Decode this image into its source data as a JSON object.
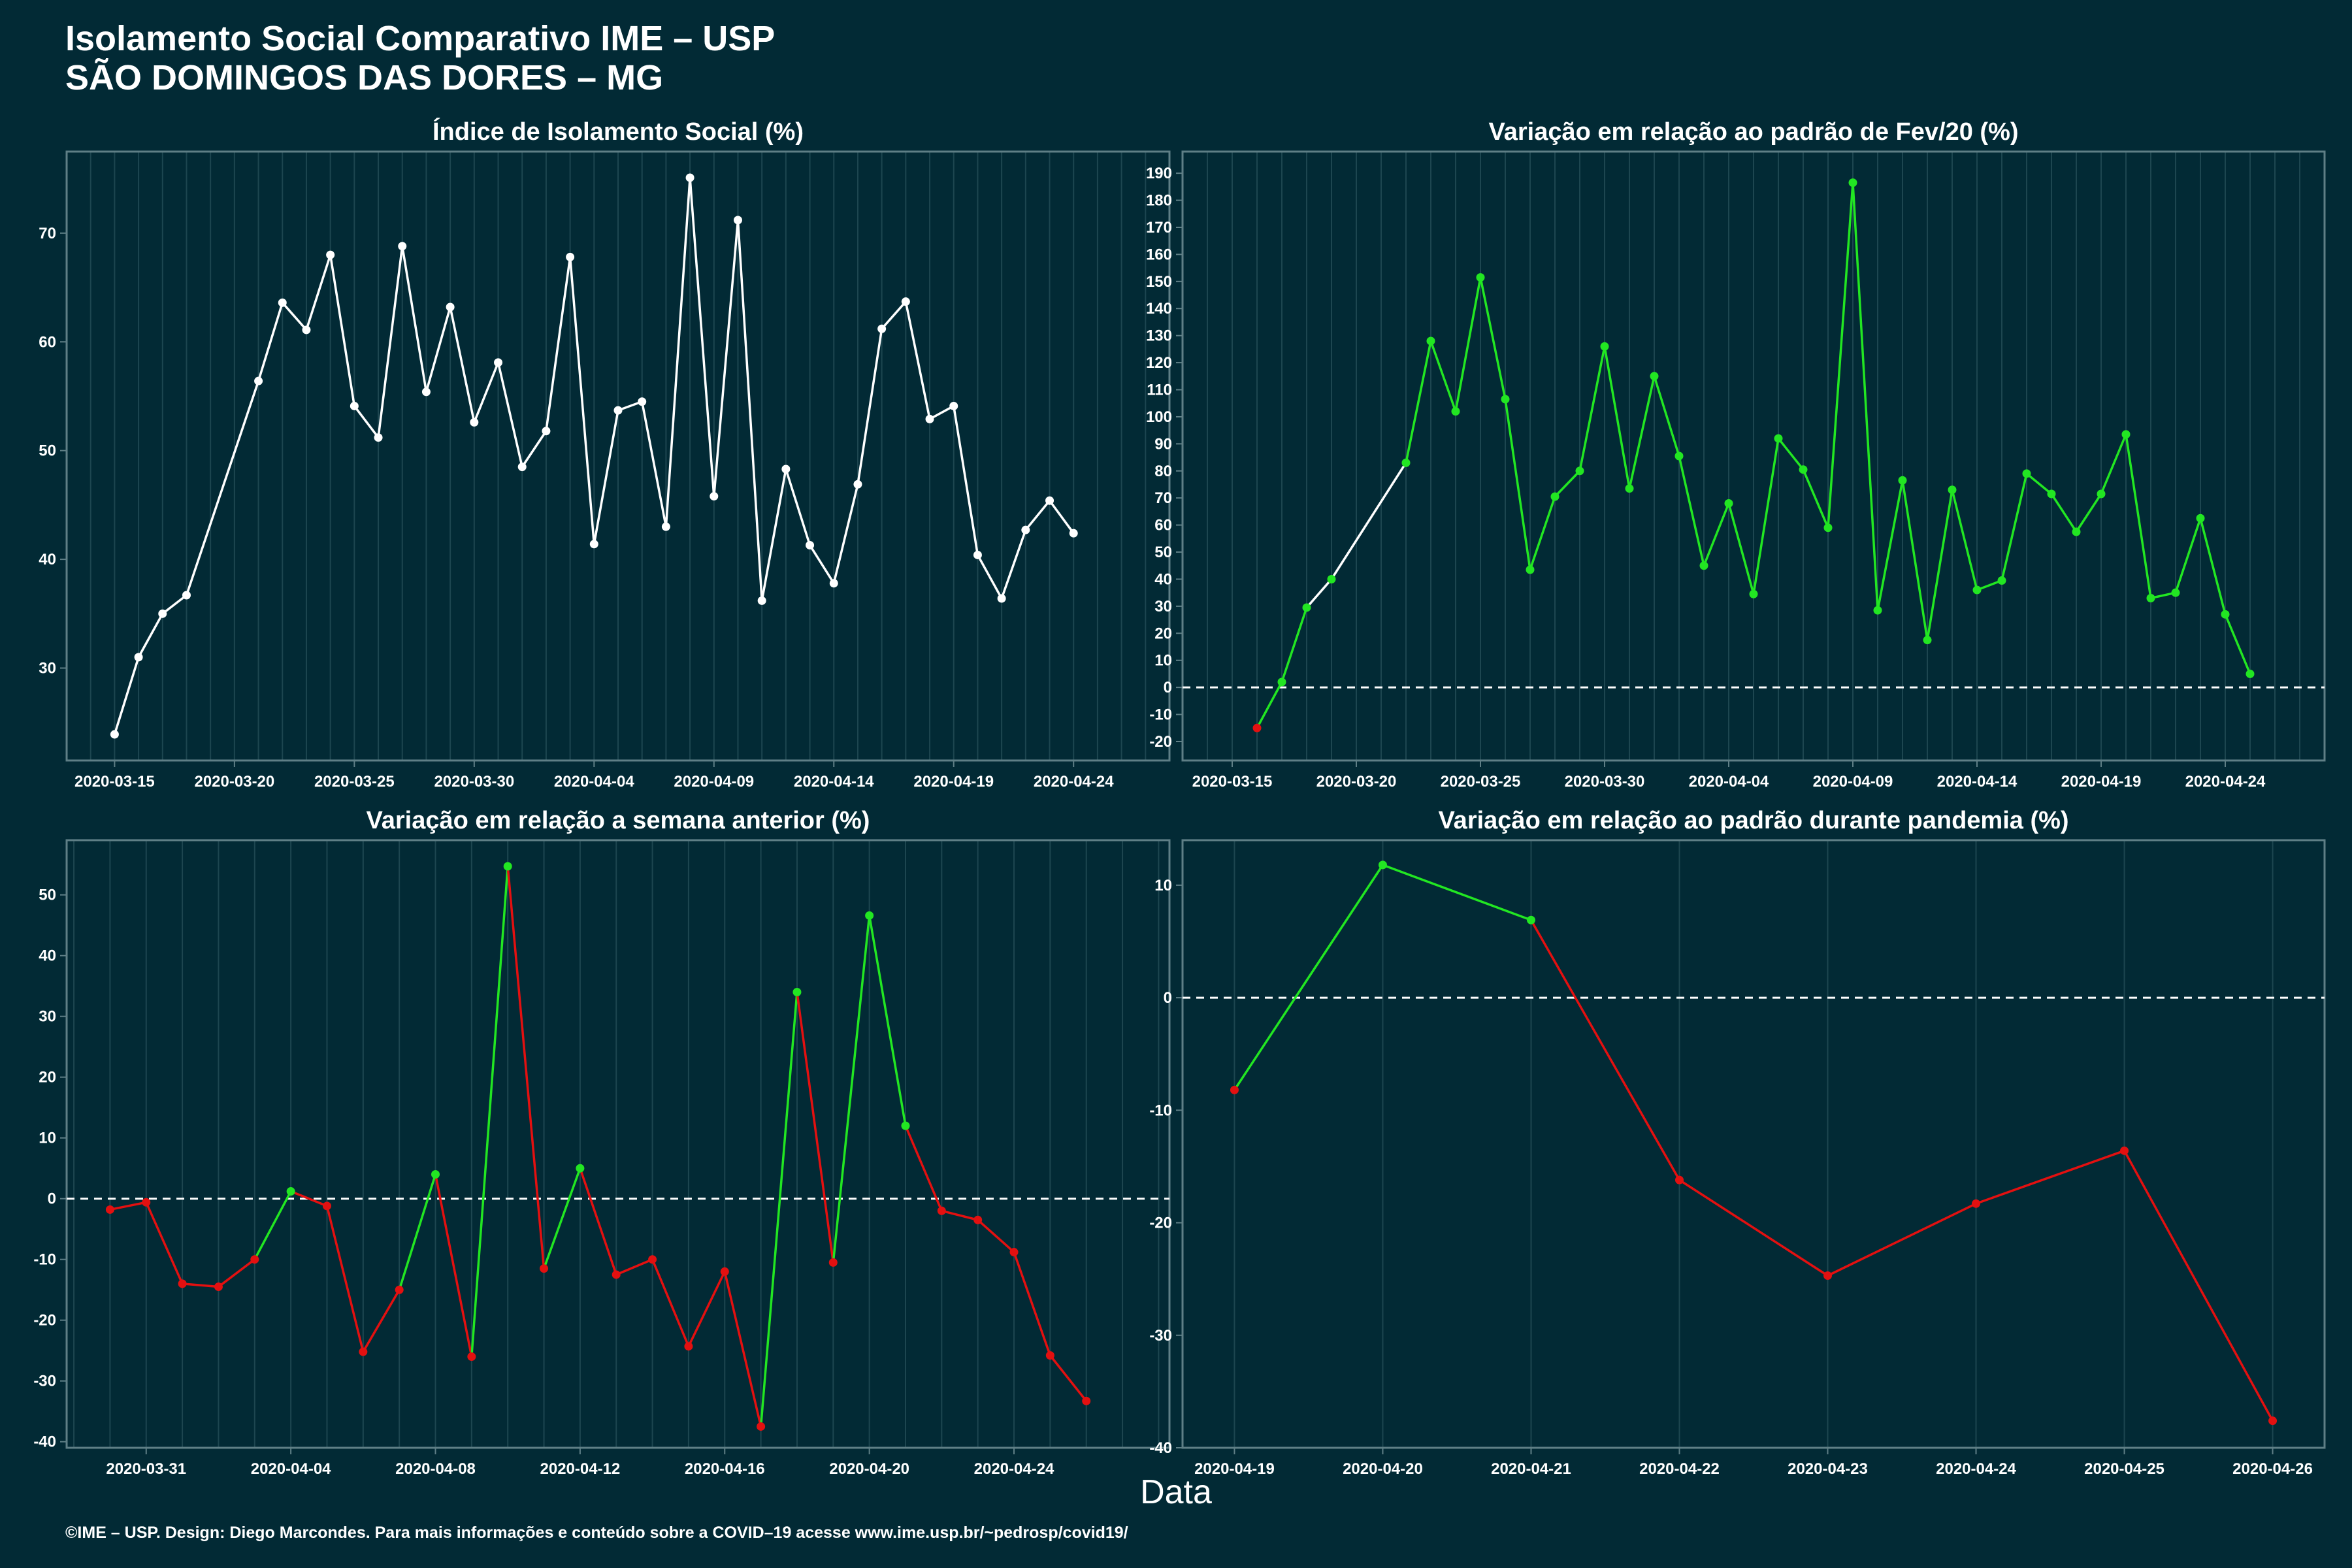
{
  "header": {
    "title_line1": "Isolamento Social Comparativo IME – USP",
    "title_line2": "SÃO DOMINGOS DAS DORES – MG"
  },
  "x_axis_caption": "Data",
  "footer": "©IME – USP. Design: Diego Marcondes. Para mais informações e conteúdo sobre a COVID–19 acesse www.ime.usp.br/~pedrosp/covid19/",
  "colors": {
    "background": "#022a35",
    "panel_border": "#5f7f86",
    "grid": "#1d4650",
    "neutral_line": "#ffffff",
    "positive": "#22e622",
    "negative": "#e31010"
  },
  "chart_data": [
    {
      "id": "p1",
      "type": "line",
      "title": "Índice de Isolamento Social (%)",
      "color_mode": "neutral",
      "reference_line": null,
      "date_start": "2020-03-13",
      "date_end": "2020-04-28",
      "ylim": [
        21.5,
        77.5
      ],
      "yticks": [
        30,
        40,
        50,
        60,
        70
      ],
      "xticks": [
        "2020-03-15",
        "2020-03-20",
        "2020-03-25",
        "2020-03-30",
        "2020-04-04",
        "2020-04-09",
        "2020-04-14",
        "2020-04-19",
        "2020-04-24"
      ],
      "points": [
        {
          "date": "2020-03-15",
          "value": 23.9
        },
        {
          "date": "2020-03-16",
          "value": 31.0
        },
        {
          "date": "2020-03-17",
          "value": 35.0
        },
        {
          "date": "2020-03-18",
          "value": 36.7
        },
        {
          "date": "2020-03-21",
          "value": 56.4
        },
        {
          "date": "2020-03-22",
          "value": 63.6
        },
        {
          "date": "2020-03-23",
          "value": 61.1
        },
        {
          "date": "2020-03-24",
          "value": 68.0
        },
        {
          "date": "2020-03-25",
          "value": 54.1
        },
        {
          "date": "2020-03-26",
          "value": 51.2
        },
        {
          "date": "2020-03-27",
          "value": 68.8
        },
        {
          "date": "2020-03-28",
          "value": 55.4
        },
        {
          "date": "2020-03-29",
          "value": 63.2
        },
        {
          "date": "2020-03-30",
          "value": 52.6
        },
        {
          "date": "2020-03-31",
          "value": 58.1
        },
        {
          "date": "2020-04-01",
          "value": 48.5
        },
        {
          "date": "2020-04-02",
          "value": 51.8
        },
        {
          "date": "2020-04-03",
          "value": 67.8
        },
        {
          "date": "2020-04-04",
          "value": 41.4
        },
        {
          "date": "2020-04-05",
          "value": 53.7
        },
        {
          "date": "2020-04-06",
          "value": 54.5
        },
        {
          "date": "2020-04-07",
          "value": 43.0
        },
        {
          "date": "2020-04-08",
          "value": 75.1
        },
        {
          "date": "2020-04-09",
          "value": 45.8
        },
        {
          "date": "2020-04-10",
          "value": 71.2
        },
        {
          "date": "2020-04-11",
          "value": 36.2
        },
        {
          "date": "2020-04-12",
          "value": 48.3
        },
        {
          "date": "2020-04-13",
          "value": 41.3
        },
        {
          "date": "2020-04-14",
          "value": 37.8
        },
        {
          "date": "2020-04-15",
          "value": 46.9
        },
        {
          "date": "2020-04-16",
          "value": 61.2
        },
        {
          "date": "2020-04-17",
          "value": 63.7
        },
        {
          "date": "2020-04-18",
          "value": 52.9
        },
        {
          "date": "2020-04-19",
          "value": 54.1
        },
        {
          "date": "2020-04-20",
          "value": 40.4
        },
        {
          "date": "2020-04-21",
          "value": 36.4
        },
        {
          "date": "2020-04-22",
          "value": 42.7
        },
        {
          "date": "2020-04-23",
          "value": 45.4
        },
        {
          "date": "2020-04-24",
          "value": 42.4
        }
      ]
    },
    {
      "id": "p2",
      "type": "line",
      "title": "Variação em relação ao padrão de Fev/20 (%)",
      "color_mode": "sign",
      "reference_line": 0,
      "date_start": "2020-03-13",
      "date_end": "2020-04-28",
      "ylim": [
        -27,
        198
      ],
      "yticks": [
        -20,
        -10,
        0,
        10,
        20,
        30,
        40,
        50,
        60,
        70,
        80,
        90,
        100,
        110,
        120,
        130,
        140,
        150,
        160,
        170,
        180,
        190
      ],
      "xticks": [
        "2020-03-15",
        "2020-03-20",
        "2020-03-25",
        "2020-03-30",
        "2020-04-04",
        "2020-04-09",
        "2020-04-14",
        "2020-04-19",
        "2020-04-24"
      ],
      "white_segments_after": [
        "2020-03-18"
      ],
      "points": [
        {
          "date": "2020-03-16",
          "value": -15
        },
        {
          "date": "2020-03-17",
          "value": 2
        },
        {
          "date": "2020-03-18",
          "value": 29.5
        },
        {
          "date": "2020-03-19",
          "value": 40
        },
        {
          "date": "2020-03-22",
          "value": 83
        },
        {
          "date": "2020-03-23",
          "value": 128
        },
        {
          "date": "2020-03-24",
          "value": 102
        },
        {
          "date": "2020-03-25",
          "value": 151.5
        },
        {
          "date": "2020-03-26",
          "value": 106.5
        },
        {
          "date": "2020-03-27",
          "value": 43.5
        },
        {
          "date": "2020-03-28",
          "value": 70.5
        },
        {
          "date": "2020-03-29",
          "value": 80
        },
        {
          "date": "2020-03-30",
          "value": 126
        },
        {
          "date": "2020-03-31",
          "value": 73.5
        },
        {
          "date": "2020-04-01",
          "value": 115
        },
        {
          "date": "2020-04-02",
          "value": 85.5
        },
        {
          "date": "2020-04-03",
          "value": 45
        },
        {
          "date": "2020-04-04",
          "value": 68
        },
        {
          "date": "2020-04-05",
          "value": 34.5
        },
        {
          "date": "2020-04-06",
          "value": 92
        },
        {
          "date": "2020-04-07",
          "value": 80.5
        },
        {
          "date": "2020-04-08",
          "value": 59
        },
        {
          "date": "2020-04-09",
          "value": 186.5
        },
        {
          "date": "2020-04-10",
          "value": 28.5
        },
        {
          "date": "2020-04-11",
          "value": 76.5
        },
        {
          "date": "2020-04-12",
          "value": 17.5
        },
        {
          "date": "2020-04-13",
          "value": 73
        },
        {
          "date": "2020-04-14",
          "value": 36
        },
        {
          "date": "2020-04-15",
          "value": 39.5
        },
        {
          "date": "2020-04-16",
          "value": 79
        },
        {
          "date": "2020-04-17",
          "value": 71.5
        },
        {
          "date": "2020-04-18",
          "value": 57.5
        },
        {
          "date": "2020-04-19",
          "value": 71.5
        },
        {
          "date": "2020-04-20",
          "value": 93.5
        },
        {
          "date": "2020-04-21",
          "value": 33
        },
        {
          "date": "2020-04-22",
          "value": 35
        },
        {
          "date": "2020-04-23",
          "value": 62.5
        },
        {
          "date": "2020-04-24",
          "value": 27
        },
        {
          "date": "2020-04-25",
          "value": 5
        }
      ]
    },
    {
      "id": "p3",
      "type": "line",
      "title": "Variação em relação a semana anterior (%)",
      "color_mode": "sign",
      "reference_line": 0,
      "date_start": "2020-03-28.8",
      "date_end": "2020-04-28.3",
      "ylim": [
        -41,
        59
      ],
      "yticks": [
        -40,
        -30,
        -20,
        -10,
        0,
        10,
        20,
        30,
        40,
        50
      ],
      "xticks": [
        "2020-03-31",
        "2020-04-04",
        "2020-04-08",
        "2020-04-12",
        "2020-04-16",
        "2020-04-20",
        "2020-04-24"
      ],
      "points": [
        {
          "date": "2020-03-30",
          "value": -1.8
        },
        {
          "date": "2020-03-31",
          "value": -0.6
        },
        {
          "date": "2020-04-01",
          "value": -14
        },
        {
          "date": "2020-04-02",
          "value": -14.5
        },
        {
          "date": "2020-04-03",
          "value": -10
        },
        {
          "date": "2020-04-04",
          "value": 1.2
        },
        {
          "date": "2020-04-05",
          "value": -1.2
        },
        {
          "date": "2020-04-06",
          "value": -25.2
        },
        {
          "date": "2020-04-07",
          "value": -15
        },
        {
          "date": "2020-04-08",
          "value": 4
        },
        {
          "date": "2020-04-09",
          "value": -26
        },
        {
          "date": "2020-04-10",
          "value": 54.7
        },
        {
          "date": "2020-04-11",
          "value": -11.5
        },
        {
          "date": "2020-04-12",
          "value": 5
        },
        {
          "date": "2020-04-13",
          "value": -12.5
        },
        {
          "date": "2020-04-14",
          "value": -10
        },
        {
          "date": "2020-04-15",
          "value": -24.3
        },
        {
          "date": "2020-04-16",
          "value": -12
        },
        {
          "date": "2020-04-17",
          "value": -37.5
        },
        {
          "date": "2020-04-18",
          "value": 34
        },
        {
          "date": "2020-04-19",
          "value": -10.5
        },
        {
          "date": "2020-04-20",
          "value": 46.6
        },
        {
          "date": "2020-04-21",
          "value": 12
        },
        {
          "date": "2020-04-22",
          "value": -2
        },
        {
          "date": "2020-04-23",
          "value": -3.5
        },
        {
          "date": "2020-04-24",
          "value": -8.8
        },
        {
          "date": "2020-04-25",
          "value": -25.8
        },
        {
          "date": "2020-04-26",
          "value": -33.3
        }
      ]
    },
    {
      "id": "p4",
      "type": "line",
      "title": "Variação em relação ao padrão durante pandemia (%)",
      "color_mode": "sign",
      "reference_line": 0,
      "date_start": "2020-04-18.65",
      "date_end": "2020-04-26.35",
      "ylim": [
        -40,
        14
      ],
      "yticks": [
        -40,
        -30,
        -20,
        -10,
        0,
        10
      ],
      "xticks": [
        "2020-04-19",
        "2020-04-20",
        "2020-04-21",
        "2020-04-22",
        "2020-04-23",
        "2020-04-24",
        "2020-04-25",
        "2020-04-26"
      ],
      "points": [
        {
          "date": "2020-04-19",
          "value": -8.2
        },
        {
          "date": "2020-04-20",
          "value": 11.8
        },
        {
          "date": "2020-04-21",
          "value": 6.9
        },
        {
          "date": "2020-04-22",
          "value": -16.2
        },
        {
          "date": "2020-04-23",
          "value": -24.7
        },
        {
          "date": "2020-04-24",
          "value": -18.3
        },
        {
          "date": "2020-04-25",
          "value": -13.6
        },
        {
          "date": "2020-04-26",
          "value": -37.6
        }
      ]
    }
  ]
}
